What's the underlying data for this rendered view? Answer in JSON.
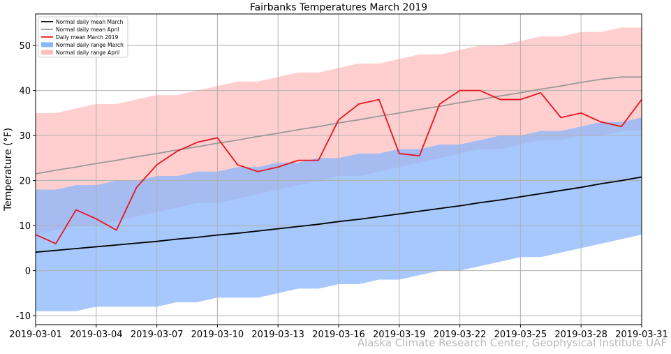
{
  "chart_data": {
    "type": "area",
    "title": "Fairbanks Temperatures March 2019",
    "xlabel": "",
    "ylabel": "Temperature (°F)",
    "xlim": [
      1,
      31
    ],
    "ylim": [
      -12,
      57
    ],
    "grid": true,
    "legend_position": "top-left",
    "x_ticks": [
      {
        "day": 1,
        "label": "2019-03-01"
      },
      {
        "day": 4,
        "label": "2019-03-04"
      },
      {
        "day": 7,
        "label": "2019-03-07"
      },
      {
        "day": 10,
        "label": "2019-03-10"
      },
      {
        "day": 13,
        "label": "2019-03-13"
      },
      {
        "day": 16,
        "label": "2019-03-16"
      },
      {
        "day": 19,
        "label": "2019-03-19"
      },
      {
        "day": 22,
        "label": "2019-03-22"
      },
      {
        "day": 25,
        "label": "2019-03-25"
      },
      {
        "day": 28,
        "label": "2019-03-28"
      },
      {
        "day": 31,
        "label": "2019-03-31"
      }
    ],
    "y_ticks": [
      -10,
      0,
      10,
      20,
      30,
      40,
      50
    ],
    "days": [
      1,
      2,
      3,
      4,
      5,
      6,
      7,
      8,
      9,
      10,
      11,
      12,
      13,
      14,
      15,
      16,
      17,
      18,
      19,
      20,
      21,
      22,
      23,
      24,
      25,
      26,
      27,
      28,
      29,
      30,
      31
    ],
    "series": [
      {
        "name": "Normal daily range April",
        "kind": "band",
        "color": "#ffbfbf",
        "low": [
          8,
          9,
          10,
          10,
          11,
          12,
          13,
          14,
          15,
          15,
          16,
          17,
          18,
          19,
          20,
          21,
          21,
          22,
          23,
          24,
          25,
          26,
          27,
          27,
          28,
          29,
          29,
          30,
          30,
          31,
          31
        ],
        "high": [
          35,
          35,
          36,
          37,
          37,
          38,
          39,
          39,
          40,
          41,
          42,
          42,
          43,
          44,
          44,
          45,
          46,
          46,
          47,
          48,
          48,
          49,
          50,
          50,
          51,
          52,
          52,
          53,
          53,
          54,
          54
        ]
      },
      {
        "name": "Normal daily range March",
        "kind": "band",
        "color": "#88b5fc",
        "low": [
          -9,
          -9,
          -9,
          -8,
          -8,
          -8,
          -8,
          -7,
          -7,
          -6,
          -6,
          -6,
          -5,
          -4,
          -4,
          -3,
          -3,
          -2,
          -2,
          -1,
          0,
          0,
          1,
          2,
          3,
          3,
          4,
          5,
          6,
          7,
          8
        ],
        "high": [
          18,
          18,
          19,
          19,
          20,
          20,
          21,
          21,
          22,
          22,
          23,
          23,
          24,
          24,
          25,
          25,
          26,
          26,
          27,
          27,
          28,
          28,
          29,
          30,
          30,
          31,
          31,
          32,
          33,
          33,
          34
        ]
      },
      {
        "name": "Normal daily mean March",
        "kind": "line",
        "color": "#000000",
        "values": [
          4.1,
          4.5,
          4.9,
          5.3,
          5.7,
          6.1,
          6.5,
          7.0,
          7.4,
          7.9,
          8.3,
          8.8,
          9.3,
          9.8,
          10.3,
          10.9,
          11.4,
          12.0,
          12.6,
          13.2,
          13.8,
          14.4,
          15.1,
          15.7,
          16.4,
          17.1,
          17.8,
          18.5,
          19.3,
          20.0,
          20.8
        ]
      },
      {
        "name": "Normal daily mean April",
        "kind": "line",
        "color": "#999999",
        "values": [
          21.5,
          22.3,
          23.0,
          23.8,
          24.5,
          25.3,
          26.0,
          26.8,
          27.5,
          28.3,
          29.0,
          29.8,
          30.5,
          31.3,
          32.0,
          32.8,
          33.5,
          34.3,
          35.0,
          35.8,
          36.5,
          37.3,
          38.0,
          38.8,
          39.5,
          40.3,
          41.0,
          41.8,
          42.5,
          43.0,
          43.0
        ]
      },
      {
        "name": "Daily mean March 2019",
        "kind": "line",
        "color": "#e8141e",
        "values": [
          8,
          6,
          13.5,
          11.5,
          9,
          18.5,
          23.5,
          26.5,
          28.5,
          29.5,
          23.5,
          22,
          23,
          24.5,
          24.5,
          33.5,
          37,
          38,
          26,
          25.5,
          37,
          40,
          40,
          38,
          38,
          39.5,
          34,
          35,
          33,
          32,
          38
        ]
      }
    ],
    "legend": [
      {
        "label": "Normal daily mean March",
        "kind": "line",
        "color": "#000000"
      },
      {
        "label": "Normal daily mean April",
        "kind": "line",
        "color": "#999999"
      },
      {
        "label": "Daily mean March 2019",
        "kind": "line",
        "color": "#e8141e"
      },
      {
        "label": "Normal daily range March",
        "kind": "patch",
        "color": "#88b5fc"
      },
      {
        "label": "Normal daily range April",
        "kind": "patch",
        "color": "#ffbfbf"
      }
    ]
  },
  "credit": "Alaska Climate Research Center, Geophysical Institute UAF"
}
